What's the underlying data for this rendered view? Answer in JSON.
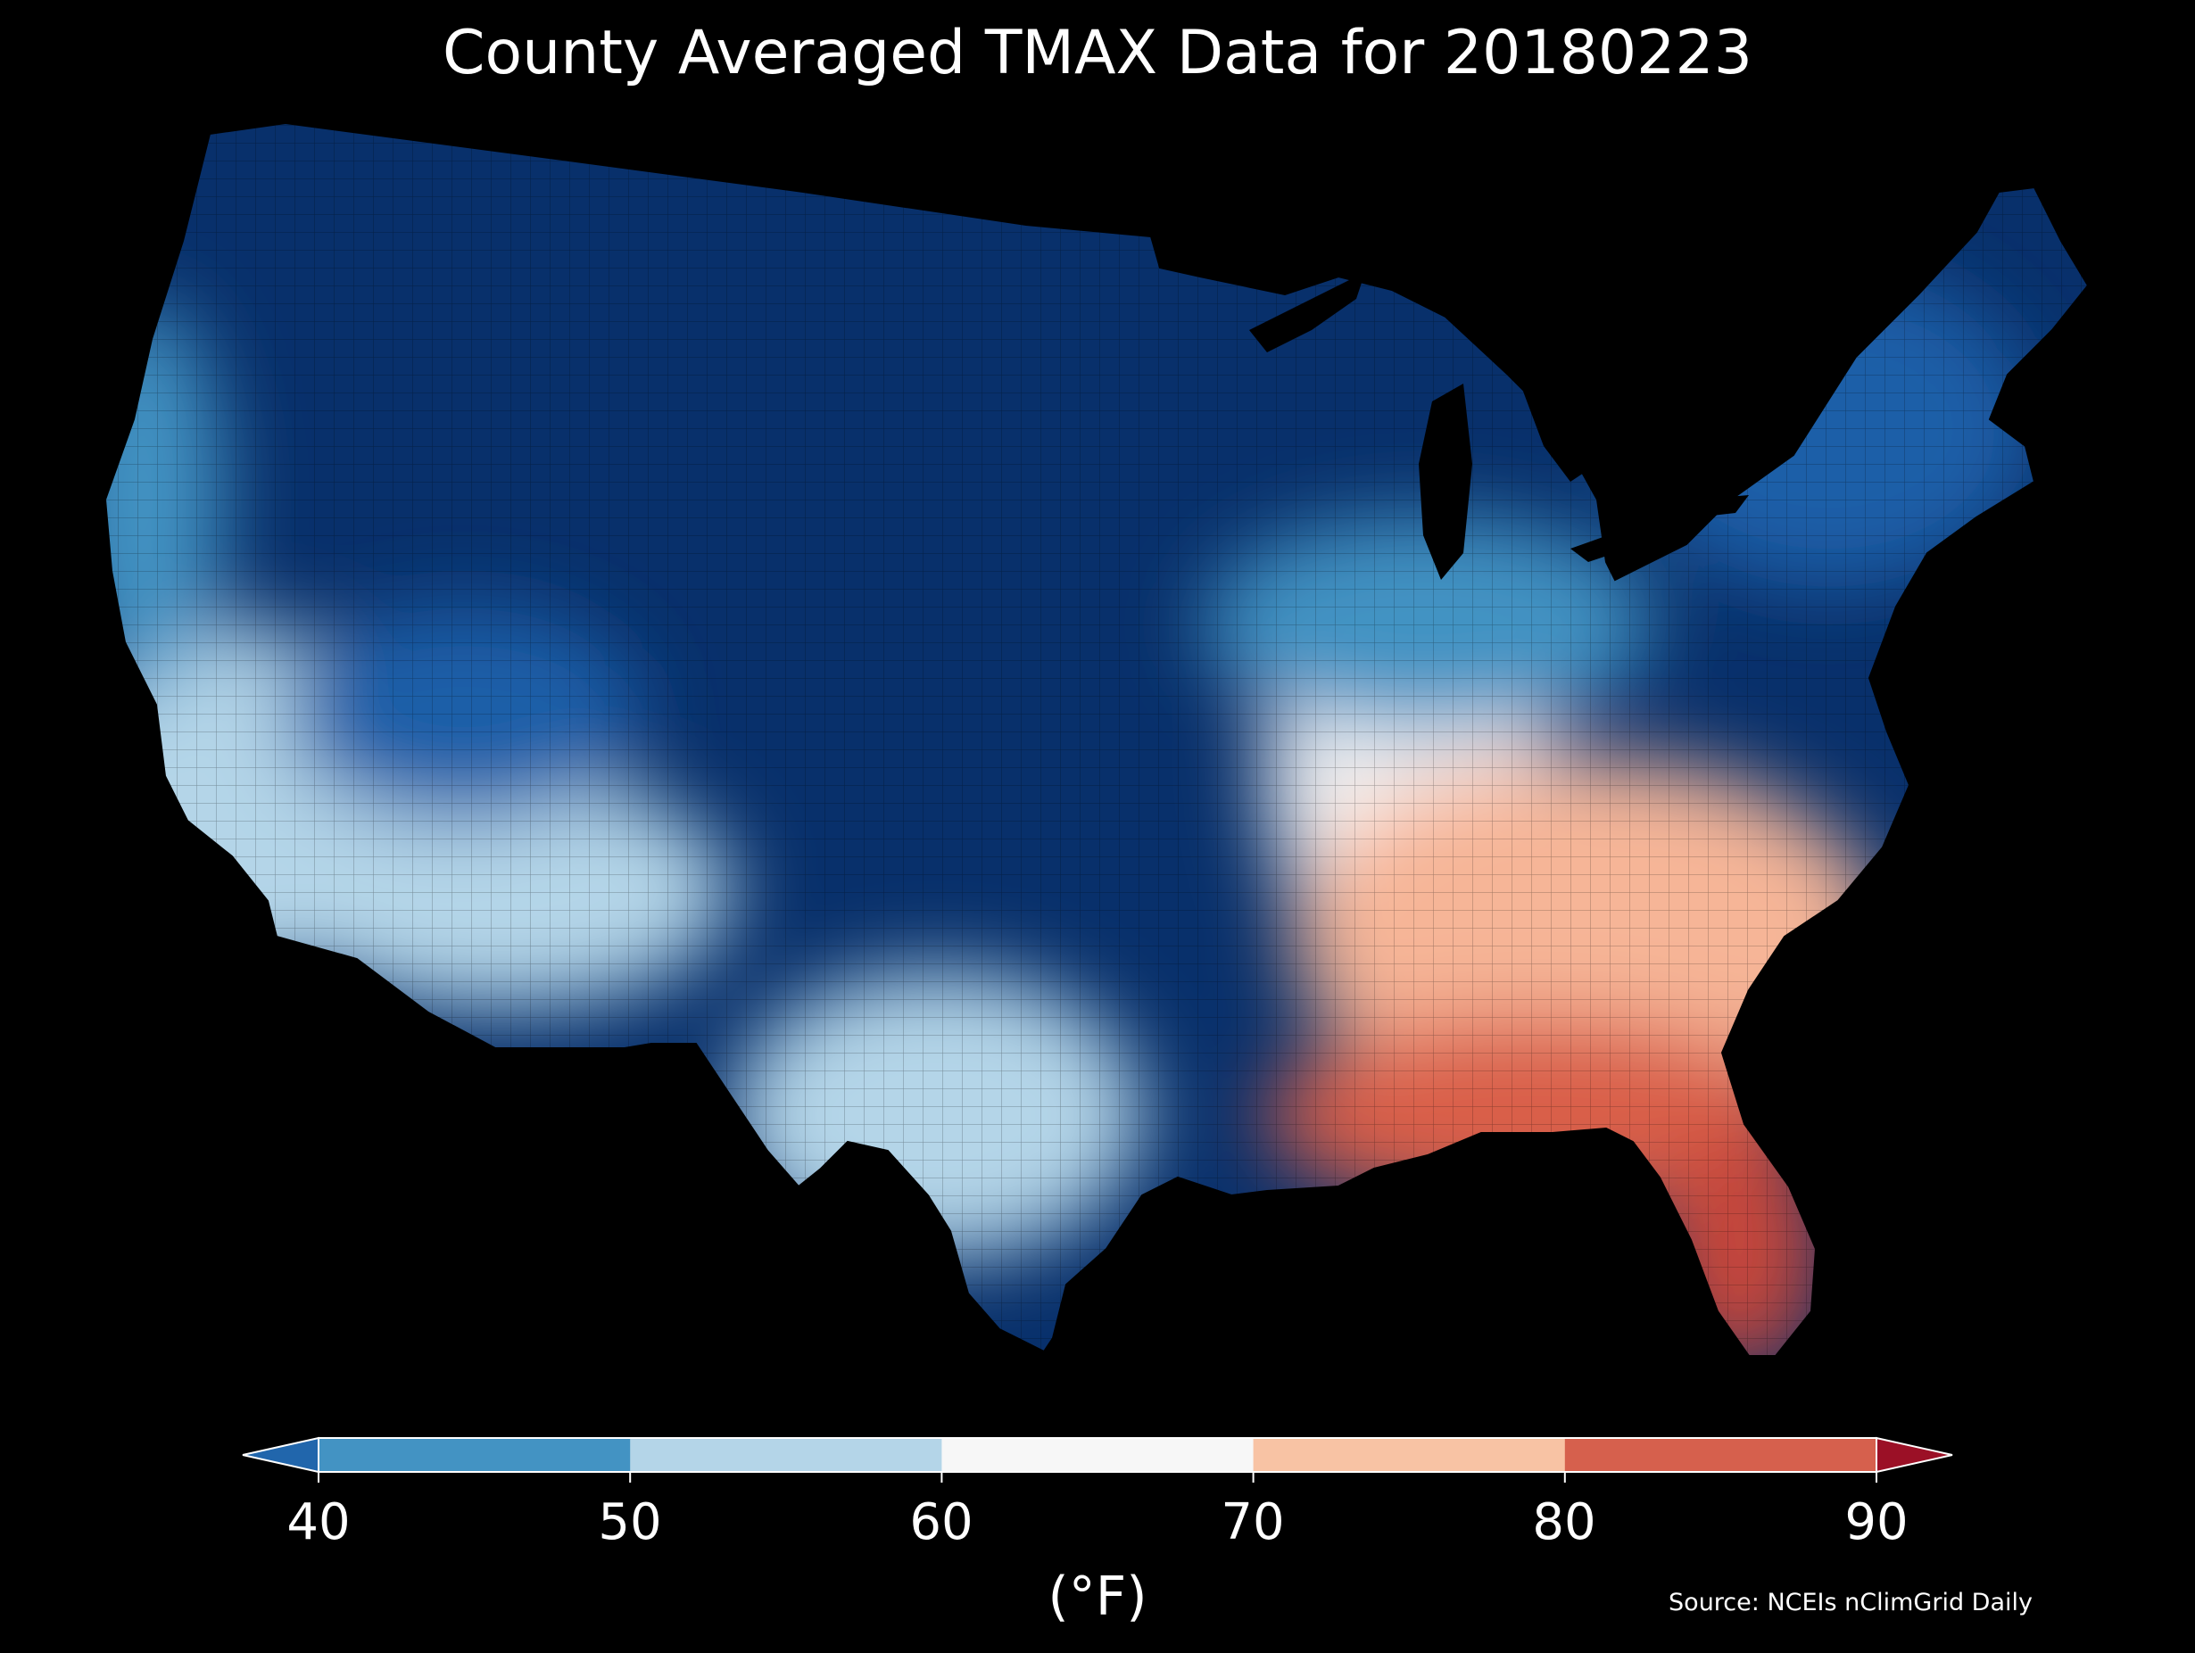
{
  "title": "County Averaged TMAX Data for 20180223",
  "colorbar": {
    "units_label": "(°F)",
    "ticks": [
      "40",
      "50",
      "60",
      "70",
      "80",
      "90"
    ],
    "bins": [
      {
        "range": "below 40",
        "color": "#2166ac"
      },
      {
        "range": "40-50",
        "color": "#4393c3"
      },
      {
        "range": "50-60",
        "color": "#b4d5e8"
      },
      {
        "range": "60-70",
        "color": "#f7f7f7"
      },
      {
        "range": "70-80",
        "color": "#f8c3a4"
      },
      {
        "range": "80-90",
        "color": "#d6604d"
      },
      {
        "range": "above 90",
        "color": "#9b1026"
      }
    ]
  },
  "map": {
    "region": "Contiguous United States, county level",
    "colors": {
      "coldest": "#08306b",
      "cold": "#1d5fa8",
      "cool": "#4393c3",
      "mild": "#b4d5e8",
      "neutral": "#f4f4f4",
      "warm": "#f6b597",
      "hot": "#d95f4a",
      "hottest": "#c8463a"
    }
  },
  "source": "Source: NCEIs nClimGrid Daily"
}
